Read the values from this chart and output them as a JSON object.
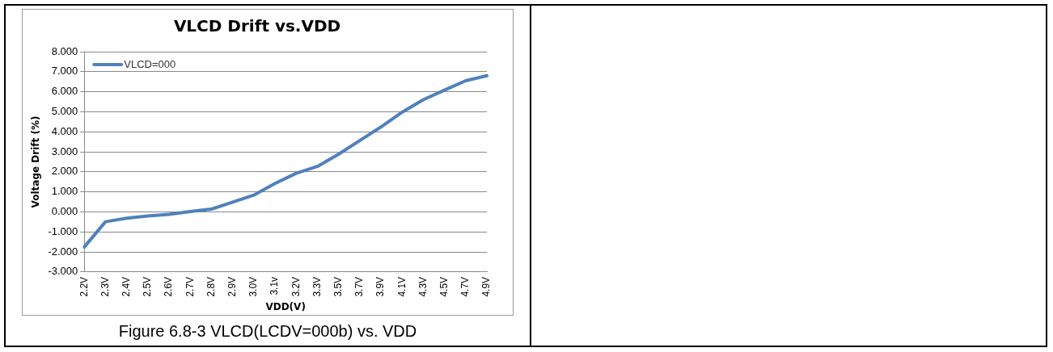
{
  "chart_data": {
    "type": "line",
    "title": "VLCD Drift vs.VDD",
    "xlabel": "VDD(V)",
    "ylabel": "Voltage Drift (%)",
    "categories": [
      "2.2V",
      "2.3V",
      "2.4V",
      "2.5V",
      "2.6V",
      "2.7V",
      "2.8V",
      "2.9V",
      "3.0V",
      "3.1v",
      "3.2V",
      "3.3V",
      "3.5V",
      "3.7V",
      "3.9V",
      "4.1V",
      "4.3V",
      "4.5V",
      "4.7V",
      "4.9V"
    ],
    "series": [
      {
        "name": "VLCD=000",
        "color": "#4f81bd",
        "values": [
          -1.75,
          -0.49,
          -0.31,
          -0.2,
          -0.12,
          0.02,
          0.14,
          0.49,
          0.84,
          1.42,
          1.93,
          2.27,
          2.88,
          3.56,
          4.24,
          4.98,
          5.6,
          6.08,
          6.55,
          6.8
        ]
      }
    ],
    "ylim": [
      -3,
      8
    ],
    "yticks": [
      {
        "value": -3,
        "label": "-3.000"
      },
      {
        "value": -2,
        "label": "-2.000"
      },
      {
        "value": -1,
        "label": "-1.000"
      },
      {
        "value": 0,
        "label": "0.000"
      },
      {
        "value": 1,
        "label": "1.000"
      },
      {
        "value": 2,
        "label": "2.000"
      },
      {
        "value": 3,
        "label": "3.000"
      },
      {
        "value": 4,
        "label": "4.000"
      },
      {
        "value": 5,
        "label": "5.000"
      },
      {
        "value": 6,
        "label": "6.000"
      },
      {
        "value": 7,
        "label": "7.000"
      },
      {
        "value": 8,
        "label": "8.000"
      }
    ],
    "grid": "y",
    "legend": "top left",
    "marker": "none",
    "line_style": "solid",
    "annotations": [
      "Figure 6.8-3 VLCD(LCDV=000b) vs. VDD"
    ]
  }
}
